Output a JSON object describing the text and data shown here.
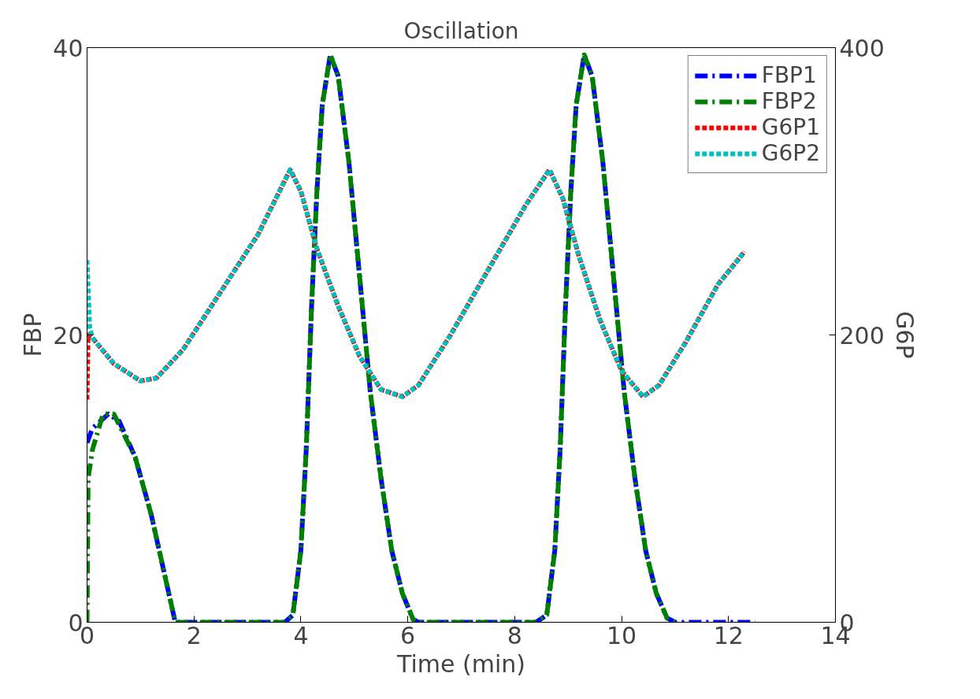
{
  "chart_data": {
    "type": "line",
    "title": "Oscillation",
    "xlabel": "Time (min)",
    "ylabel": "FBP",
    "y2label": "G6P",
    "xlim": [
      0,
      14
    ],
    "xticks": [
      0,
      2,
      4,
      6,
      8,
      10,
      12,
      14
    ],
    "ylim": [
      0,
      40
    ],
    "yticks": [
      0,
      20,
      40
    ],
    "y2lim": [
      0,
      400
    ],
    "y2ticks": [
      0,
      200,
      400
    ],
    "grid": false,
    "legend": "top right",
    "series": [
      {
        "name": "FBP1",
        "color": "#0000ff",
        "line_style": "dashdot",
        "x": [
          0,
          0.1,
          0.4,
          0.6,
          0.9,
          1.2,
          1.5,
          1.65,
          3.7,
          3.85,
          4.0,
          4.1,
          4.2,
          4.3,
          4.4,
          4.55,
          4.7,
          4.9,
          5.1,
          5.3,
          5.5,
          5.7,
          5.9,
          6.1,
          6.2,
          8.4,
          8.6,
          8.75,
          8.85,
          8.95,
          9.05,
          9.15,
          9.3,
          9.45,
          9.65,
          9.85,
          10.05,
          10.25,
          10.45,
          10.65,
          10.85,
          11.0,
          12.5
        ],
        "values": [
          12.5,
          13.5,
          14.5,
          14,
          11.5,
          7.5,
          2.5,
          0,
          0,
          0.5,
          5,
          12,
          22,
          30,
          36,
          39.5,
          38,
          32,
          24,
          16,
          10,
          5,
          2,
          0.2,
          0,
          0,
          0.5,
          5,
          12,
          22,
          30,
          36,
          39.5,
          38,
          32,
          24,
          16,
          10,
          5,
          2,
          0.3,
          0,
          0
        ]
      },
      {
        "name": "FBP2",
        "color": "#008000",
        "line_style": "dashdot",
        "x": [
          0,
          0.02,
          0.1,
          0.3,
          0.5,
          0.9,
          1.2,
          1.5,
          1.65,
          3.7,
          3.85,
          4.0,
          4.1,
          4.2,
          4.3,
          4.4,
          4.55,
          4.7,
          4.9,
          5.1,
          5.3,
          5.5,
          5.7,
          5.9,
          6.1,
          6.2,
          8.4,
          8.6,
          8.75,
          8.85,
          8.95,
          9.05,
          9.15,
          9.3,
          9.45,
          9.65,
          9.85,
          10.05,
          10.25,
          10.45,
          10.65,
          10.85,
          11.0
        ],
        "values": [
          0,
          10,
          12,
          14.5,
          14.5,
          11.5,
          7.5,
          2.5,
          0,
          0,
          0.5,
          5,
          12,
          22,
          30,
          36,
          39.5,
          38,
          32,
          24,
          16,
          10,
          5,
          2,
          0.2,
          0,
          0,
          0.5,
          5,
          12,
          22,
          30,
          36,
          39.5,
          38,
          32,
          24,
          16,
          10,
          5,
          2,
          0.3,
          0
        ]
      },
      {
        "name": "G6P1",
        "color": "#ff0000",
        "line_style": "dashed",
        "axis": "y2",
        "x": [
          0,
          0.02,
          0.1,
          0.5,
          1.0,
          1.3,
          1.8,
          2.5,
          3.2,
          3.8,
          4.0,
          4.3,
          4.7,
          5.1,
          5.5,
          5.9,
          6.2,
          6.8,
          7.5,
          8.2,
          8.65,
          8.9,
          9.2,
          9.6,
          10.0,
          10.4,
          10.7,
          11.2,
          11.8,
          12.3
        ],
        "values": [
          155,
          200,
          198,
          180,
          168,
          170,
          190,
          230,
          270,
          315,
          300,
          260,
          220,
          185,
          162,
          157,
          165,
          200,
          245,
          290,
          315,
          295,
          255,
          210,
          175,
          157,
          165,
          195,
          235,
          258
        ]
      },
      {
        "name": "G6P2",
        "color": "#00bfbf",
        "line_style": "dashed",
        "axis": "y2",
        "x": [
          0,
          0.05,
          0.1,
          0.5,
          1.0,
          1.3,
          1.8,
          2.5,
          3.2,
          3.8,
          4.0,
          4.3,
          4.7,
          5.1,
          5.5,
          5.9,
          6.2,
          6.8,
          7.5,
          8.2,
          8.65,
          8.9,
          9.2,
          9.6,
          10.0,
          10.4,
          10.7,
          11.2,
          11.8,
          12.3
        ],
        "values": [
          252,
          205,
          198,
          180,
          168,
          170,
          190,
          230,
          270,
          315,
          300,
          260,
          220,
          185,
          162,
          157,
          165,
          200,
          245,
          290,
          315,
          295,
          255,
          210,
          175,
          157,
          165,
          195,
          235,
          258
        ]
      }
    ]
  }
}
